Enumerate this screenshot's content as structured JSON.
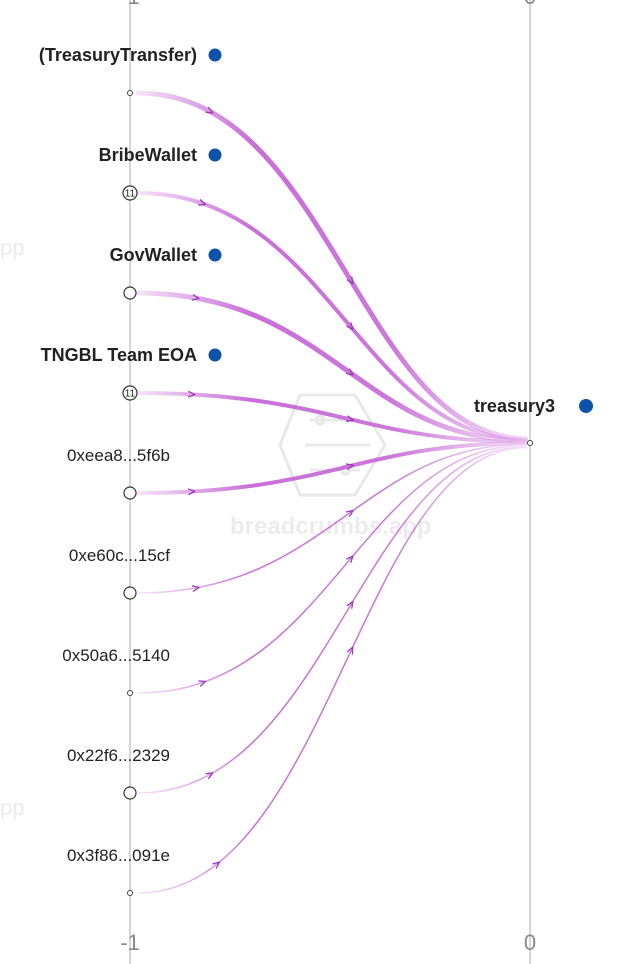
{
  "colors": {
    "edge": "#c35fd4",
    "node_dot": "#0d53a8",
    "axis": "#d6d6d6"
  },
  "axis": {
    "left_tick": "-1",
    "right_tick": "0"
  },
  "watermark": {
    "brand": "breadcrumbs.app",
    "edge_fragment": "pp"
  },
  "target": {
    "label": "treasury3",
    "marker": "small"
  },
  "sources": [
    {
      "label": "(TreasuryTransfer)",
      "bold": true,
      "marker": "small",
      "count": "",
      "weight": 5
    },
    {
      "label": "BribeWallet",
      "bold": true,
      "marker": "count",
      "count": "11",
      "weight": 4
    },
    {
      "label": "GovWallet",
      "bold": true,
      "marker": "circle",
      "count": "",
      "weight": 5
    },
    {
      "label": "TNGBL Team EOA",
      "bold": true,
      "marker": "count",
      "count": "11",
      "weight": 4
    },
    {
      "label": "0xeea8...5f6b",
      "bold": false,
      "marker": "circle",
      "count": "",
      "weight": 4
    },
    {
      "label": "0xe60c...15cf",
      "bold": false,
      "marker": "circle",
      "count": "",
      "weight": 1.5
    },
    {
      "label": "0x50a6...5140",
      "bold": false,
      "marker": "small",
      "count": "",
      "weight": 1.5
    },
    {
      "label": "0x22f6...2329",
      "bold": false,
      "marker": "circle",
      "count": "",
      "weight": 1.5
    },
    {
      "label": "0x3f86...091e",
      "bold": false,
      "marker": "small",
      "count": "",
      "weight": 1.5
    }
  ]
}
